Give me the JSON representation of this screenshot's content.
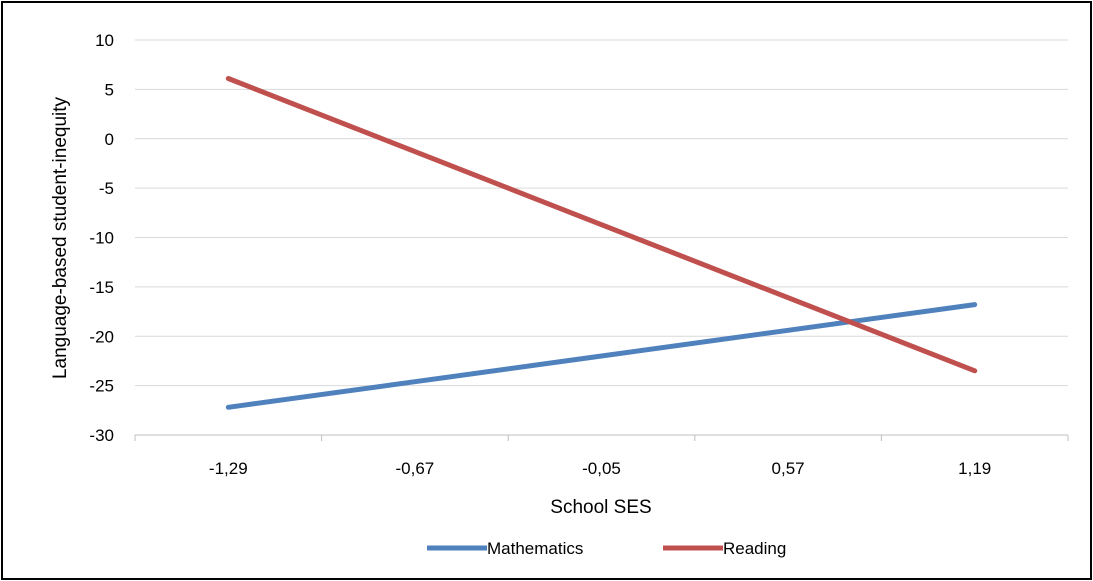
{
  "chart_data": {
    "type": "line",
    "title": "",
    "xlabel": "School SES",
    "ylabel": "Language-based student-inequity",
    "categories": [
      "-1,29",
      "-0,67",
      "-0,05",
      "0,57",
      "1,19"
    ],
    "x": [
      -1.29,
      -0.67,
      -0.05,
      0.57,
      1.19
    ],
    "ylim": [
      -30,
      10
    ],
    "yticks": [
      "10",
      "5",
      "0",
      "-5",
      "-10",
      "-15",
      "-20",
      "-25",
      "-30"
    ],
    "grid": true,
    "legend_position": "bottom",
    "series": [
      {
        "name": "Mathematics",
        "color": "#4f81bd",
        "values": [
          -27.2,
          -24.6,
          -22.0,
          -19.4,
          -16.8
        ]
      },
      {
        "name": "Reading",
        "color": "#c0504d",
        "values": [
          6.1,
          -1.3,
          -8.7,
          -16.1,
          -23.5
        ]
      }
    ]
  }
}
